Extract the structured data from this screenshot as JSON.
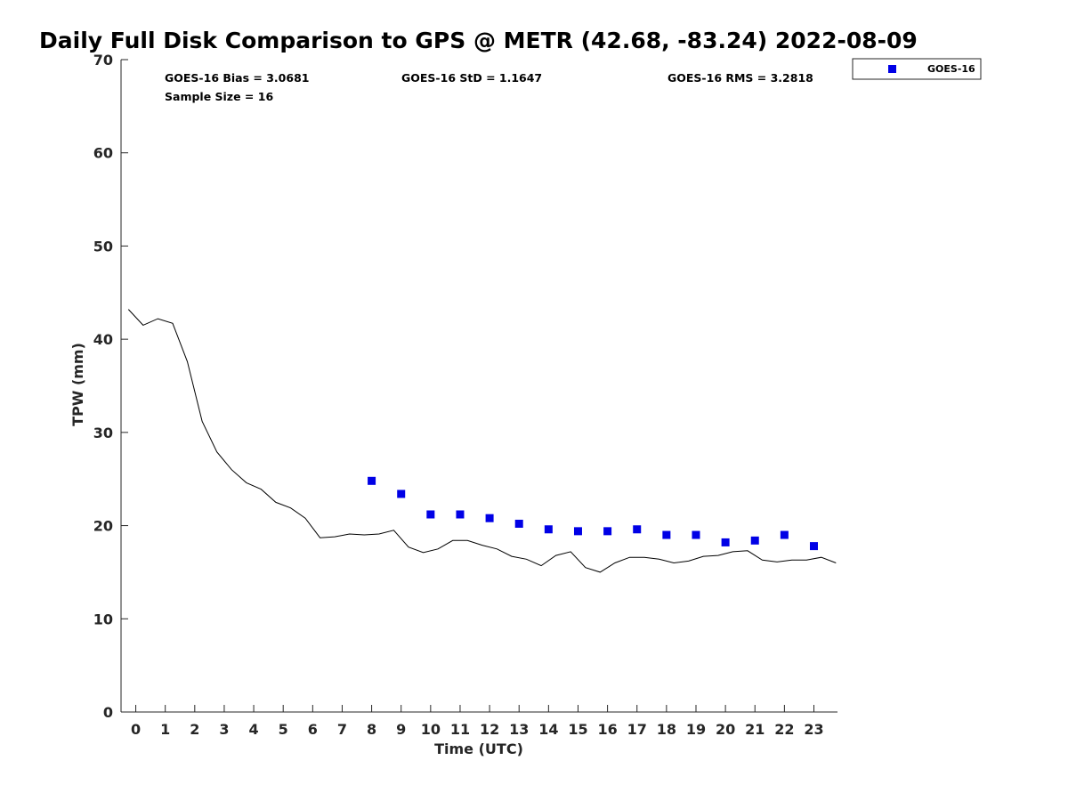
{
  "chart_data": {
    "type": "scatter",
    "title": "Daily Full Disk Comparison to GPS @ METR (42.68, -83.24) 2022-08-09",
    "xlabel": "Time (UTC)",
    "ylabel": "TPW (mm)",
    "xlim": [
      -0.5,
      23.8
    ],
    "ylim": [
      0,
      70
    ],
    "xticks": [
      0,
      1,
      2,
      3,
      4,
      5,
      6,
      7,
      8,
      9,
      10,
      11,
      12,
      13,
      14,
      15,
      16,
      17,
      18,
      19,
      20,
      21,
      22,
      23
    ],
    "yticks": [
      0,
      10,
      20,
      30,
      40,
      50,
      60,
      70
    ],
    "stats": {
      "bias": "GOES-16 Bias = 3.0681",
      "std": "GOES-16 StD = 1.1647",
      "rms": "GOES-16 RMS = 3.2818",
      "sample": "Sample Size = 16"
    },
    "legend": {
      "label": "GOES-16",
      "position": "top-right-outside"
    },
    "colors": {
      "goes": "#0000e6",
      "gps": "#000000",
      "axis": "#262626"
    },
    "series": [
      {
        "name": "GPS",
        "style": "line",
        "x": [
          -0.25,
          0.25,
          0.75,
          1.25,
          1.75,
          2.25,
          2.75,
          3.25,
          3.75,
          4.25,
          4.75,
          5.25,
          5.75,
          6.25,
          6.75,
          7.25,
          7.75,
          8.25,
          8.75,
          9.25,
          9.75,
          10.25,
          10.75,
          11.25,
          11.75,
          12.25,
          12.75,
          13.25,
          13.75,
          14.25,
          14.75,
          15.25,
          15.75,
          16.25,
          16.75,
          17.25,
          17.75,
          18.25,
          18.75,
          19.25,
          19.75,
          20.25,
          20.75,
          21.25,
          21.75,
          22.25,
          22.75,
          23.25,
          23.75
        ],
        "values": [
          43.2,
          41.5,
          42.2,
          41.7,
          37.6,
          31.2,
          27.9,
          26.0,
          24.6,
          23.9,
          22.5,
          21.9,
          20.8,
          18.7,
          18.8,
          19.1,
          19.0,
          19.1,
          19.5,
          17.7,
          17.1,
          17.5,
          18.4,
          18.4,
          17.9,
          17.5,
          16.7,
          16.4,
          15.7,
          16.8,
          17.2,
          15.5,
          15.0,
          16.0,
          16.6,
          16.6,
          16.4,
          16.0,
          16.2,
          16.7,
          16.8,
          17.2,
          17.3,
          16.3,
          16.1,
          16.3,
          16.3,
          16.6,
          16.0
        ]
      },
      {
        "name": "GOES-16",
        "style": "marker",
        "x": [
          8,
          9,
          10,
          11,
          12,
          13,
          14,
          15,
          16,
          17,
          18,
          19,
          20,
          21,
          22,
          23
        ],
        "values": [
          24.8,
          23.4,
          21.2,
          21.2,
          20.8,
          20.2,
          19.6,
          19.4,
          19.4,
          19.6,
          19.0,
          19.0,
          18.2,
          18.4,
          19.0,
          17.8
        ]
      }
    ]
  }
}
